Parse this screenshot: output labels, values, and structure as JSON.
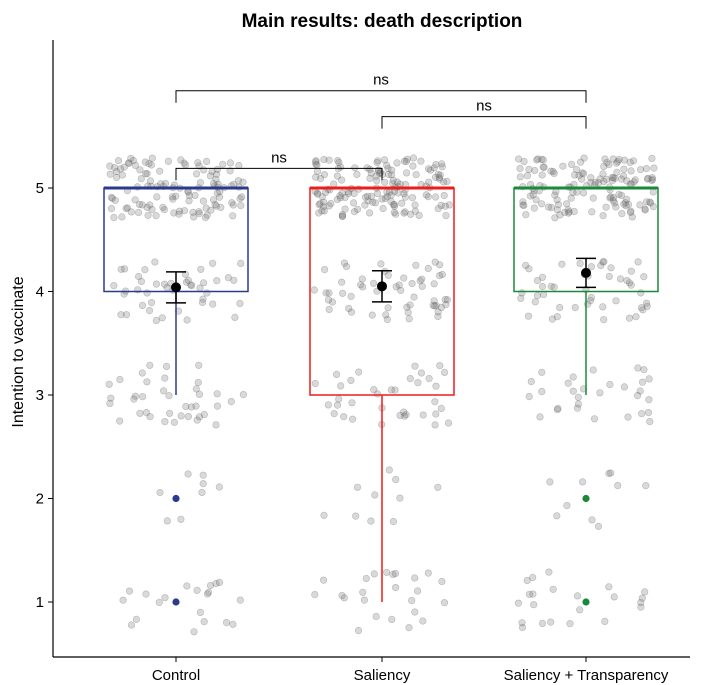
{
  "chart_data": {
    "type": "boxplot",
    "title": "Main results: death description",
    "ylabel": "Intention to vaccinate",
    "xlabel": "",
    "ylim": [
      0.6,
      6.0
    ],
    "yticks": [
      1,
      2,
      3,
      4,
      5
    ],
    "grid": false,
    "legend": "none",
    "categories": [
      "Control",
      "Saliency",
      "Saliency + Transparency"
    ],
    "colors": [
      "#2b3a8f",
      "#ee1c1c",
      "#1a8a3a"
    ],
    "boxes": [
      {
        "category": "Control",
        "q1": 4,
        "median": 5,
        "q3": 5,
        "whisker_low": 3,
        "whisker_high": 5,
        "outliers": [
          2,
          1
        ],
        "mean": 4.04,
        "ci_low": 3.89,
        "ci_high": 4.19
      },
      {
        "category": "Saliency",
        "q1": 3,
        "median": 5,
        "q3": 5,
        "whisker_low": 1,
        "whisker_high": 5,
        "outliers": [],
        "mean": 4.05,
        "ci_low": 3.9,
        "ci_high": 4.2
      },
      {
        "category": "Saliency + Transparency",
        "q1": 4,
        "median": 5,
        "q3": 5,
        "whisker_low": 3,
        "whisker_high": 5,
        "outliers": [
          2,
          1
        ],
        "mean": 4.18,
        "ci_low": 4.04,
        "ci_high": 4.32
      }
    ],
    "jitter_counts": [
      {
        "category": "Control",
        "counts": {
          "1": 20,
          "2": 8,
          "3": 38,
          "4": 44,
          "5": 120
        }
      },
      {
        "category": "Saliency",
        "counts": {
          "1": 24,
          "2": 10,
          "3": 36,
          "4": 56,
          "5": 150
        }
      },
      {
        "category": "Saliency + Transparency",
        "counts": {
          "1": 22,
          "2": 10,
          "3": 30,
          "4": 48,
          "5": 140
        }
      }
    ],
    "comparisons": [
      {
        "from": "Control",
        "to": "Saliency",
        "y": 5.19,
        "label": "ns"
      },
      {
        "from": "Saliency",
        "to": "Saliency + Transparency",
        "y": 5.69,
        "label": "ns"
      },
      {
        "from": "Control",
        "to": "Saliency + Transparency",
        "y": 5.94,
        "label": "ns"
      }
    ]
  }
}
